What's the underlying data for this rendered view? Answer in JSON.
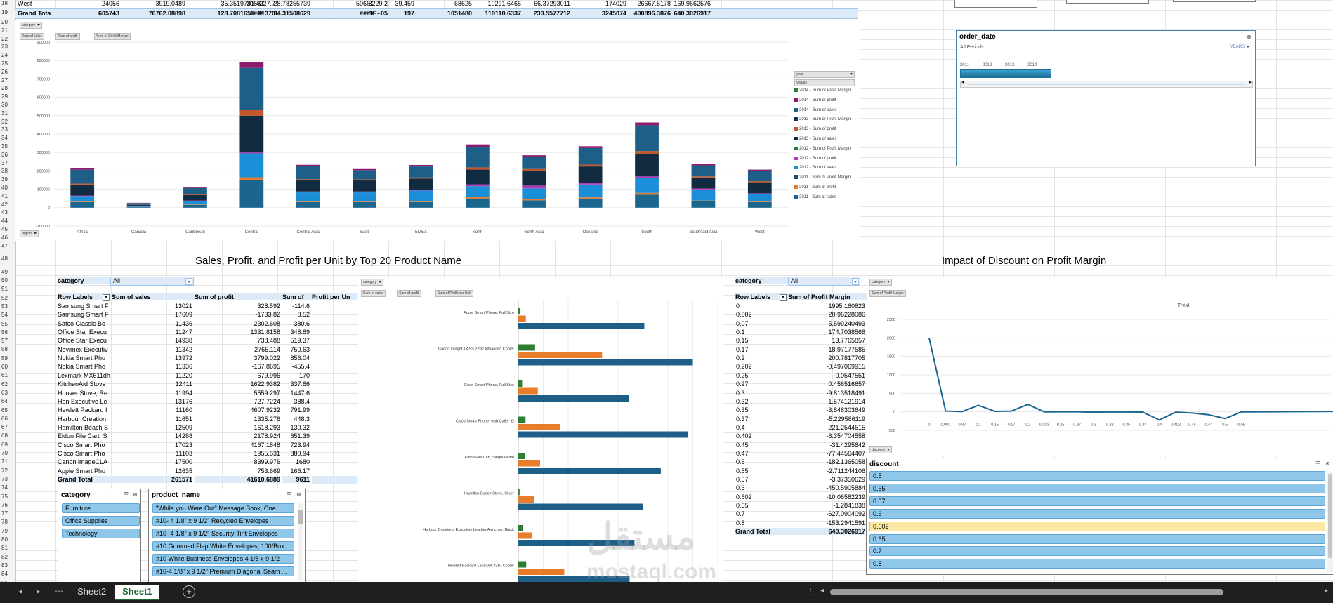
{
  "top_rows": {
    "west": [
      "West",
      "24056",
      "3919.0489",
      "35.3519781",
      "30687",
      "4227.7",
      "28.78255739",
      "50661",
      "8229.2",
      "39.459",
      "68625",
      "10291.6465",
      "66.37293011",
      "174029",
      "26667.5178",
      "169.9662576"
    ],
    "grand": [
      "Grand Tota",
      "605743",
      "76762.08898",
      "128.7081655",
      "####",
      "81370",
      "84.31508629",
      "####",
      "1E+05",
      "197",
      "1051480",
      "119110.6337",
      "230.5577712",
      "3245074",
      "400896.3876",
      "640.3026917"
    ]
  },
  "row_numbers": [
    "18",
    "19",
    "20",
    "21",
    "22",
    "23",
    "24",
    "25",
    "26",
    "27",
    "28",
    "29",
    "30",
    "31",
    "32",
    "33",
    "34",
    "35",
    "36",
    "37",
    "38",
    "39",
    "40",
    "41",
    "42",
    "43",
    "44",
    "45",
    "46",
    "47",
    "48",
    "49",
    "50",
    "51",
    "52",
    "53",
    "54",
    "55",
    "56",
    "57",
    "58",
    "59",
    "60",
    "61",
    "62",
    "63",
    "64",
    "65",
    "66",
    "67",
    "68",
    "69",
    "70",
    "71",
    "72",
    "73",
    "74",
    "75",
    "76",
    "77",
    "78",
    "79",
    "80",
    "81",
    "82",
    "83",
    "84",
    "85"
  ],
  "region_chart": {
    "filter_category": "category",
    "value_buttons": [
      "Sum of sales",
      "Sum of profit",
      "Sum of Profit Margin"
    ],
    "axis_filter": "region",
    "legend_filter_year": "year",
    "legend_filter_values": "Values",
    "legend": [
      {
        "label": "2014 - Sum of Profit Margin",
        "color": "#2e7d32"
      },
      {
        "label": "2014 - Sum of profit",
        "color": "#8e1b6d"
      },
      {
        "label": "2014 - Sum of sales",
        "color": "#1d5f87"
      },
      {
        "label": "2013 - Sum of Profit Margin",
        "color": "#16334a"
      },
      {
        "label": "2013 - Sum of profit",
        "color": "#c2562d"
      },
      {
        "label": "2013 - Sum of sales",
        "color": "#112b40"
      },
      {
        "label": "2012 - Sum of Profit Margin",
        "color": "#1e7a3a"
      },
      {
        "label": "2012 - Sum of profit",
        "color": "#b03bb8"
      },
      {
        "label": "2012 - Sum of sales",
        "color": "#1a8fd8"
      },
      {
        "label": "2011 - Sum of Profit Margin",
        "color": "#1b4f66"
      },
      {
        "label": "2011 - Sum of profit",
        "color": "#e87c2b"
      },
      {
        "label": "2011 - Sum of sales",
        "color": "#1a668f"
      }
    ]
  },
  "chart_data": [
    {
      "type": "bar",
      "stacked": true,
      "categories": [
        "Africa",
        "Canada",
        "Caribbean",
        "Central",
        "Central Asia",
        "East",
        "EMEA",
        "North",
        "North Asia",
        "Oceania",
        "South",
        "Southeast Asia",
        "West"
      ],
      "yticks": [
        "900000",
        "800000",
        "700000",
        "600000",
        "500000",
        "400000",
        "300000",
        "200000",
        "100000",
        "0",
        "-100000"
      ],
      "ylim": [
        -100000,
        900000
      ],
      "series": [
        {
          "name": "2011 - Sum of sales",
          "color": "#1a668f",
          "values": [
            30000,
            3000,
            15000,
            150000,
            30000,
            30000,
            30000,
            50000,
            40000,
            50000,
            70000,
            35000,
            30000
          ]
        },
        {
          "name": "2011 - Sum of profit",
          "color": "#e87c2b",
          "values": [
            3000,
            500,
            2000,
            15000,
            3000,
            3000,
            3000,
            7000,
            5000,
            6000,
            10000,
            4000,
            3000
          ]
        },
        {
          "name": "2012 - Sum of sales",
          "color": "#1a8fd8",
          "values": [
            30000,
            3000,
            20000,
            130000,
            50000,
            50000,
            60000,
            60000,
            60000,
            70000,
            80000,
            60000,
            40000
          ]
        },
        {
          "name": "2012 - Sum of profit",
          "color": "#b03bb8",
          "values": [
            3000,
            500,
            2000,
            5000,
            5000,
            5000,
            5000,
            10000,
            15000,
            8000,
            10000,
            5000,
            5000
          ]
        },
        {
          "name": "2013 - Sum of sales",
          "color": "#112b40",
          "values": [
            60000,
            8000,
            30000,
            200000,
            60000,
            60000,
            60000,
            80000,
            80000,
            90000,
            120000,
            60000,
            60000
          ]
        },
        {
          "name": "2013 - Sum of profit",
          "color": "#c2562d",
          "values": [
            5000,
            1000,
            3000,
            30000,
            7000,
            6000,
            6000,
            12000,
            10000,
            10000,
            18000,
            6000,
            6000
          ]
        },
        {
          "name": "2014 - Sum of sales",
          "color": "#1d5f87",
          "values": [
            75000,
            9000,
            35000,
            230000,
            70000,
            50000,
            60000,
            110000,
            65000,
            90000,
            140000,
            60000,
            55000
          ]
        },
        {
          "name": "2014 - Sum of profit",
          "color": "#8e1b6d",
          "values": [
            9000,
            1500,
            4000,
            30000,
            8000,
            6000,
            8000,
            15000,
            10000,
            10000,
            15000,
            8000,
            8000
          ]
        }
      ]
    },
    {
      "type": "bar",
      "orientation": "horizontal",
      "categories": [
        "Apple Smart Phone, Full Size",
        "Canon imageCLASS 2200 Advanced Copier",
        "Cisco Smart Phone, Full Size",
        "Cisco Smart Phone, with Caller ID",
        "Eldon File Cart, Single Width",
        "Hamilton Beach Stove, Silver",
        "Harbour Creations Executive Leather Armchair, Black",
        "Hewlett Packard LaserJet 3310 Copier"
      ],
      "series": [
        {
          "name": "Sum of sales",
          "color": "#1d5f87",
          "values": [
            12635,
            17500,
            11103,
            17023,
            14288,
            12509,
            11651,
            11160
          ]
        },
        {
          "name": "Sum of profit",
          "color": "#e87c2b",
          "values": [
            753.669,
            8399.976,
            1955.531,
            4167.1848,
            2178.924,
            1618.293,
            1335.276,
            4607.9232
          ]
        },
        {
          "name": "Sum of Profit per Unit",
          "color": "#2e7d32",
          "values": [
            166.17,
            1680,
            380.94,
            723.94,
            651.39,
            130.32,
            448.3,
            791.99
          ]
        }
      ]
    },
    {
      "type": "line",
      "title": "Total",
      "categories": [
        "0",
        "0.002",
        "0.07",
        "0.1",
        "0.15",
        "0.17",
        "0.2",
        "0.202",
        "0.25",
        "0.27",
        "0.3",
        "0.32",
        "0.35",
        "0.37",
        "0.4",
        "0.402",
        "0.45",
        "0.47",
        "0.5",
        "0.55"
      ],
      "values": [
        1995.16,
        20.96,
        5.6,
        174.7,
        13.78,
        18.97,
        200.78,
        -0.5,
        -0.05,
        0.46,
        -9.81,
        -1.57,
        -3.85,
        -5.23,
        -221.25,
        -8.35,
        -31.43,
        -77.45,
        -182.14,
        -2.71
      ],
      "yticks": [
        "2500",
        "2000",
        "1500",
        "1000",
        "500",
        "0",
        "-500"
      ],
      "ylim": [
        -500,
        2500
      ]
    }
  ],
  "order_date_slicer": {
    "title": "order_date",
    "all_periods": "All Periods",
    "level": "YEARS",
    "years": [
      "2011",
      "2012",
      "2013",
      "2014"
    ]
  },
  "titles": {
    "product": "Sales, Profit, and Profit per Unit by Top 20 Product Name",
    "discount": "Impact of Discount on Profit Margin"
  },
  "product_pivot": {
    "filter_label": "category",
    "filter_value": "All",
    "headers": [
      "Row Labels",
      "Sum of sales",
      "Sum of profit",
      "Sum of",
      "Profit per Un"
    ],
    "rows": [
      [
        "Samsung Smart F",
        "13021",
        "328.592",
        "-114.6"
      ],
      [
        "Samsung Smart F",
        "17609",
        "-1733.82",
        "8.52"
      ],
      [
        "Safco Classic Bo",
        "11436",
        "2302.608",
        "380.6"
      ],
      [
        "Office Star Execu",
        "11247",
        "1331.8158",
        "348.89"
      ],
      [
        "Office Star Execu",
        "14938",
        "738.488",
        "519.37"
      ],
      [
        "Novimex Executiv",
        "11342",
        "2765.114",
        "750.63"
      ],
      [
        "Nokia Smart Pho",
        "13972",
        "3799.022",
        "856.04"
      ],
      [
        "Nokia Smart Pho",
        "11336",
        "-167.8695",
        "-455.4"
      ],
      [
        "Lexmark MX611dh",
        "11220",
        "-679.996",
        "170"
      ],
      [
        "KitchenAid Stove",
        "12411",
        "1622.9382",
        "337.86"
      ],
      [
        "Hoover Stove, Re",
        "11994",
        "5559.297",
        "1447.6"
      ],
      [
        "Hon Executive Le",
        "13176",
        "727.7224",
        "388.4"
      ],
      [
        "Hewlett Packard I",
        "11160",
        "4607.9232",
        "791.99"
      ],
      [
        "Harbour Creation",
        "11651",
        "1335.276",
        "448.3"
      ],
      [
        "Hamilton Beach S",
        "12509",
        "1618.293",
        "130.32"
      ],
      [
        "Eldon File Cart, S",
        "14288",
        "2178.924",
        "651.39"
      ],
      [
        "Cisco Smart Pho",
        "17023",
        "4167.1848",
        "723.94"
      ],
      [
        "Cisco Smart Pho",
        "11103",
        "1955.531",
        "380.94"
      ],
      [
        "Canon imageCLA",
        "17500",
        "8399.976",
        "1680"
      ],
      [
        "Apple Smart Pho",
        "12635",
        "753.669",
        "166.17"
      ]
    ],
    "grand": [
      "Grand Total",
      "261571",
      "41610.6889",
      "9611"
    ]
  },
  "product_chart_buttons": {
    "filter": "category",
    "values": [
      "Sum of sales",
      "Sum of profit",
      "Sum of Profit per Unit"
    ]
  },
  "category_slicer": {
    "title": "category",
    "items": [
      "Furniture",
      "Office Supplies",
      "Technology"
    ]
  },
  "product_slicer": {
    "title": "product_name",
    "items": [
      "\"While you Were Out\" Message Book, One ...",
      "#10- 4 1/8\" x 9 1/2\" Recycled Envelopes",
      "#10- 4 1/8\" x 9 1/2\" Security-Tint Envelopes",
      "#10 Gummed Flap White Envelopes, 100/Box",
      "#10 White Business Envelopes,4 1/8 x 9 1/2",
      "#10-4 1/8\" x 9 1/2\" Premium Diagonal Seam ..."
    ]
  },
  "discount_pivot": {
    "filter_label": "category",
    "filter_value": "All",
    "headers": [
      "Row Labels",
      "Sum of Profit Margin"
    ],
    "rows": [
      [
        "0",
        "1995.160823"
      ],
      [
        "0.002",
        "20.96228086"
      ],
      [
        "0.07",
        "5.599240493"
      ],
      [
        "0.1",
        "174.7038568"
      ],
      [
        "0.15",
        "13.7765857"
      ],
      [
        "0.17",
        "18.97177585"
      ],
      [
        "0.2",
        "200.7817705"
      ],
      [
        "0.202",
        "-0.497069915"
      ],
      [
        "0.25",
        "-0.0547551"
      ],
      [
        "0.27",
        "0.456516657"
      ],
      [
        "0.3",
        "-9.813518491"
      ],
      [
        "0.32",
        "-1.574121914"
      ],
      [
        "0.35",
        "-3.848303649"
      ],
      [
        "0.37",
        "-5.229586119"
      ],
      [
        "0.4",
        "-221.2544515"
      ],
      [
        "0.402",
        "-8.354704558"
      ],
      [
        "0.45",
        "-31.4295842"
      ],
      [
        "0.47",
        "-77.44564407"
      ],
      [
        "0.5",
        "-182.1365058"
      ],
      [
        "0.55",
        "-2.711244106"
      ],
      [
        "0.57",
        "-3.37350629"
      ],
      [
        "0.6",
        "-450.5905884"
      ],
      [
        "0.602",
        "-10.06582239"
      ],
      [
        "0.65",
        "-1.2841838"
      ],
      [
        "0.7",
        "-627.0904092"
      ],
      [
        "0.8",
        "-153.2941591"
      ]
    ],
    "grand": [
      "Grand Total",
      "640.3026917"
    ]
  },
  "discount_chart_buttons": {
    "filter": "category",
    "values": [
      "Sum of Profit Margin"
    ],
    "axis": "discount"
  },
  "discount_slicer": {
    "title": "discount",
    "items": [
      "0.5",
      "0.55",
      "0.57",
      "0.6",
      "0.602",
      "0.65",
      "0.7",
      "0.8"
    ],
    "selected": "0.602"
  },
  "tabs": [
    "Sheet2",
    "Sheet1"
  ],
  "active_tab": "Sheet1",
  "watermark": {
    "arabic": "مستقل",
    "latin": "mostaql.com"
  }
}
